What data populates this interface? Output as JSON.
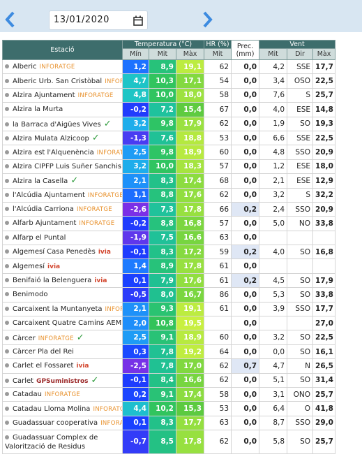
{
  "header": {
    "date": "13/01/2020"
  },
  "table": {
    "columns": {
      "station": "Estació",
      "temperature": "Temperatura (°C)",
      "humidity": "HR (%)",
      "precipitation": "Prec. (mm)",
      "wind": "Vent",
      "temp_sub": [
        "Mín",
        "Mit",
        "Màx"
      ],
      "humidity_sub": [
        "Mit"
      ],
      "wind_sub": [
        "Mit",
        "Dir",
        "Màx"
      ]
    },
    "rows": [
      {
        "name": "Alberic",
        "tag": "INFORATGE",
        "cells": [
          "1,2",
          "8,9",
          "19,1",
          "62",
          "0,0",
          "4,2",
          "SSE",
          "17,7"
        ]
      },
      {
        "name": "Alberic Urb. San Cristòbal",
        "tag": "INFORATGE",
        "cells": [
          "4,7",
          "10,3",
          "17,1",
          "54",
          "0,0",
          "3,4",
          "OSO",
          "22,5"
        ]
      },
      {
        "name": "Alzira Ajuntament",
        "tag": "INFORATGE",
        "cells": [
          "4,8",
          "10,0",
          "18,0",
          "58",
          "0,0",
          "7,6",
          "S",
          "25,7"
        ]
      },
      {
        "name": "Alzira la Murta",
        "cells": [
          "-0,2",
          "7,2",
          "15,4",
          "67",
          "0,0",
          "4,0",
          "ESE",
          "14,8"
        ]
      },
      {
        "name": "la Barraca d'Aigües Vives",
        "verified": true,
        "cells": [
          "3,2",
          "9,8",
          "17,9",
          "62",
          "0,0",
          "1,9",
          "SO",
          "19,3"
        ]
      },
      {
        "name": "Alzira Mulata Alzicoop",
        "verified": true,
        "cells": [
          "-1,3",
          "7,6",
          "18,8",
          "53",
          "0,0",
          "6,6",
          "SSE",
          "22,5"
        ]
      },
      {
        "name": "Alzira est l'Alquenència",
        "tag": "INFORATGE",
        "cells": [
          "2,5",
          "9,8",
          "18,9",
          "60",
          "0,0",
          "4,8",
          "SSO",
          "20,9"
        ]
      },
      {
        "name": "Alzira CIPFP Luis Suñer Sanchis",
        "cells": [
          "3,2",
          "10,0",
          "18,3",
          "57",
          "0,0",
          "1,2",
          "ESE",
          "18,0"
        ]
      },
      {
        "name": "Alzira la Casella",
        "verified": true,
        "cells": [
          "2,1",
          "8,3",
          "17,4",
          "68",
          "0,0",
          "2,1",
          "ESE",
          "12,9"
        ]
      },
      {
        "name": "l'Alcúdia Ajuntament",
        "tag": "INFORATGE",
        "cells": [
          "1,1",
          "8,8",
          "17,6",
          "62",
          "0,0",
          "3,2",
          "S",
          "32,2"
        ]
      },
      {
        "name": "l'Alcúdia Carriona",
        "tag": "INFORATGE",
        "cells": [
          "-2,6",
          "7,3",
          "17,8",
          "66",
          "0,2",
          "2,4",
          "SSO",
          "20,9"
        ]
      },
      {
        "name": "Alfarb Ajuntament",
        "tag": "INFORATGE",
        "cells": [
          "-0,2",
          "8,8",
          "16,8",
          "57",
          "0,0",
          "5,0",
          "NO",
          "33,8"
        ]
      },
      {
        "name": "Alfarp el Puntal",
        "cells": [
          "-1,9",
          "7,5",
          "16,6",
          "63",
          "0,0",
          null,
          null,
          null
        ]
      },
      {
        "name": "Algemesí Casa Penedès",
        "tag": "ivia",
        "cells": [
          "-0,1",
          "8,3",
          "17,2",
          "59",
          "0,2",
          "4,0",
          "SO",
          "16,8"
        ]
      },
      {
        "name": "Algemesí",
        "tag": "ivia",
        "cells": [
          "1,4",
          "8,9",
          "17,8",
          "61",
          "0,0",
          null,
          null,
          null
        ]
      },
      {
        "name": "Benifaió la Belenguera",
        "tag": "ivia",
        "cells": [
          "0,1",
          "7,9",
          "17,6",
          "61",
          "0,2",
          "4,5",
          "SO",
          "17,9"
        ]
      },
      {
        "name": "Benimodo",
        "cells": [
          "-0,5",
          "8,0",
          "16,7",
          "86",
          "0,0",
          "5,3",
          "SO",
          "33,8"
        ]
      },
      {
        "name": "Carcaixent la Muntanyeta",
        "tag": "INFORATGE",
        "cells": [
          "2,1",
          "9,3",
          "19,1",
          "61",
          "0,0",
          "3,9",
          "SSO",
          "17,7"
        ]
      },
      {
        "name": "Carcaixent Quatre Camins AEMET",
        "cells": [
          "2,0",
          "10,8",
          "19,5",
          null,
          "0,0",
          null,
          null,
          "27,0"
        ]
      },
      {
        "name": "Càrcer",
        "tag": "INFORATGE",
        "verified": true,
        "cells": [
          "2,5",
          "9,1",
          "18,9",
          "60",
          "0,0",
          "3,2",
          "SO",
          "22,5"
        ]
      },
      {
        "name": "Càrcer Pla del Rei",
        "cells": [
          "0,3",
          "7,8",
          "19,2",
          "64",
          "0,0",
          "0,0",
          "SO",
          "16,1"
        ]
      },
      {
        "name": "Carlet el Fossaret",
        "tag": "ivia",
        "cells": [
          "-2,5",
          "7,8",
          "17,0",
          "62",
          "0,7",
          "4,7",
          "N",
          "26,5"
        ]
      },
      {
        "name": "Carlet",
        "tag": "GPSuministros",
        "verified": true,
        "cells": [
          "-0,1",
          "8,4",
          "16,6",
          "62",
          "0,0",
          "5,1",
          "SO",
          "31,4"
        ]
      },
      {
        "name": "Catadau",
        "tag": "INFORATGE",
        "cells": [
          "0,2",
          "9,1",
          "17,4",
          "58",
          "0,0",
          "3,1",
          "ONO",
          "25,7"
        ]
      },
      {
        "name": "Catadau Lloma Molina",
        "tag": "INFORATGE",
        "cells": [
          "4,4",
          "10,2",
          "15,3",
          "53",
          "0,0",
          "6,4",
          "O",
          "41,8"
        ]
      },
      {
        "name": "Guadassuar cooperativa",
        "tag": "INFORATGE",
        "cells": [
          "0,1",
          "8,3",
          "17,7",
          "63",
          "0,0",
          "8,7",
          "SSO",
          "29,0"
        ]
      },
      {
        "name": "Guadassuar Complex de Valorització de Residus",
        "cells": [
          "-0,7",
          "8,5",
          "17,8",
          "62",
          "0,0",
          "5,8",
          "SO",
          "25,7"
        ]
      }
    ]
  }
}
